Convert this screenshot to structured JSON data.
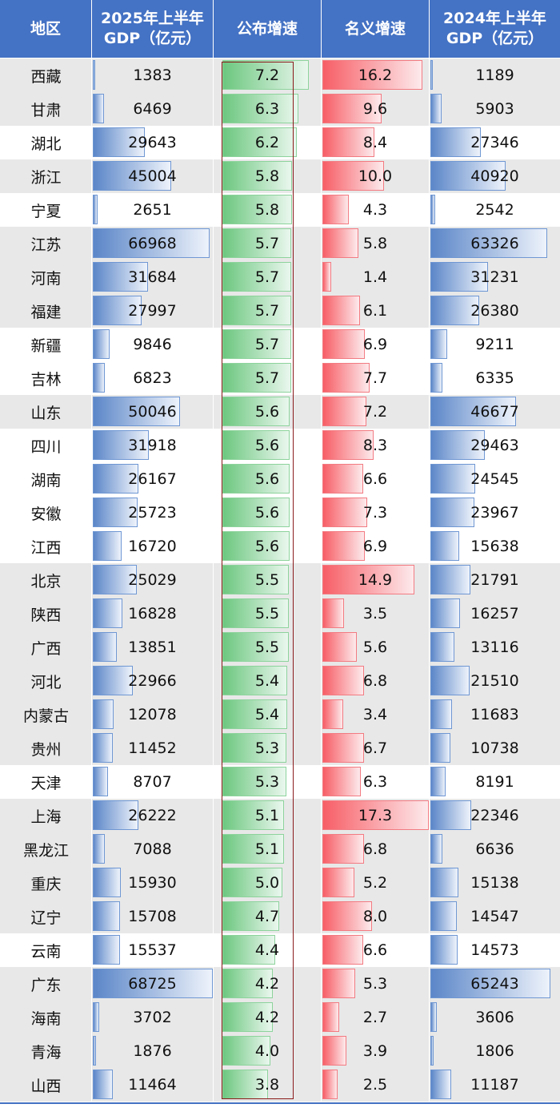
{
  "headers": {
    "region": "地区",
    "gdp_2025": [
      "2025年上半年",
      "GDP（亿元）"
    ],
    "official_growth": "公布增速",
    "nominal_growth": "名义增速",
    "gdp_2024": [
      "2024年上半年",
      "GDP（亿元）"
    ]
  },
  "colors": {
    "header_bg": "#4472c4",
    "gdp_bar": "#5b86c8",
    "official_bar": "#6cc77f",
    "nominal_bar": "#f75e66",
    "highlight_border": "#8b1a1a",
    "row_shade": "#e8e8e8"
  },
  "chart_data": {
    "type": "table",
    "columns": [
      "地区",
      "2025年上半年 GDP（亿元）",
      "公布增速",
      "名义增速",
      "2024年上半年 GDP（亿元）"
    ],
    "rows": [
      {
        "region": "西藏",
        "gdp_2025": "1383",
        "official": "7.2",
        "nominal": "16.2",
        "gdp_2024": "1189"
      },
      {
        "region": "甘肃",
        "gdp_2025": "6469",
        "official": "6.3",
        "nominal": "9.6",
        "gdp_2024": "5903"
      },
      {
        "region": "湖北",
        "gdp_2025": "29643",
        "official": "6.2",
        "nominal": "8.4",
        "gdp_2024": "27346"
      },
      {
        "region": "浙江",
        "gdp_2025": "45004",
        "official": "5.8",
        "nominal": "10.0",
        "gdp_2024": "40920"
      },
      {
        "region": "宁夏",
        "gdp_2025": "2651",
        "official": "5.8",
        "nominal": "4.3",
        "gdp_2024": "2542"
      },
      {
        "region": "江苏",
        "gdp_2025": "66968",
        "official": "5.7",
        "nominal": "5.8",
        "gdp_2024": "63326"
      },
      {
        "region": "河南",
        "gdp_2025": "31684",
        "official": "5.7",
        "nominal": "1.4",
        "gdp_2024": "31231"
      },
      {
        "region": "福建",
        "gdp_2025": "27997",
        "official": "5.7",
        "nominal": "6.1",
        "gdp_2024": "26380"
      },
      {
        "region": "新疆",
        "gdp_2025": "9846",
        "official": "5.7",
        "nominal": "6.9",
        "gdp_2024": "9211"
      },
      {
        "region": "吉林",
        "gdp_2025": "6823",
        "official": "5.7",
        "nominal": "7.7",
        "gdp_2024": "6335"
      },
      {
        "region": "山东",
        "gdp_2025": "50046",
        "official": "5.6",
        "nominal": "7.2",
        "gdp_2024": "46677"
      },
      {
        "region": "四川",
        "gdp_2025": "31918",
        "official": "5.6",
        "nominal": "8.3",
        "gdp_2024": "29463"
      },
      {
        "region": "湖南",
        "gdp_2025": "26167",
        "official": "5.6",
        "nominal": "6.6",
        "gdp_2024": "24545"
      },
      {
        "region": "安徽",
        "gdp_2025": "25723",
        "official": "5.6",
        "nominal": "7.3",
        "gdp_2024": "23967"
      },
      {
        "region": "江西",
        "gdp_2025": "16720",
        "official": "5.6",
        "nominal": "6.9",
        "gdp_2024": "15638"
      },
      {
        "region": "北京",
        "gdp_2025": "25029",
        "official": "5.5",
        "nominal": "14.9",
        "gdp_2024": "21791"
      },
      {
        "region": "陕西",
        "gdp_2025": "16828",
        "official": "5.5",
        "nominal": "3.5",
        "gdp_2024": "16257"
      },
      {
        "region": "广西",
        "gdp_2025": "13851",
        "official": "5.5",
        "nominal": "5.6",
        "gdp_2024": "13116"
      },
      {
        "region": "河北",
        "gdp_2025": "22966",
        "official": "5.4",
        "nominal": "6.8",
        "gdp_2024": "21510"
      },
      {
        "region": "内蒙古",
        "gdp_2025": "12078",
        "official": "5.4",
        "nominal": "3.4",
        "gdp_2024": "11683"
      },
      {
        "region": "贵州",
        "gdp_2025": "11452",
        "official": "5.3",
        "nominal": "6.7",
        "gdp_2024": "10738"
      },
      {
        "region": "天津",
        "gdp_2025": "8707",
        "official": "5.3",
        "nominal": "6.3",
        "gdp_2024": "8191"
      },
      {
        "region": "上海",
        "gdp_2025": "26222",
        "official": "5.1",
        "nominal": "17.3",
        "gdp_2024": "22346"
      },
      {
        "region": "黑龙江",
        "gdp_2025": "7088",
        "official": "5.1",
        "nominal": "6.8",
        "gdp_2024": "6636"
      },
      {
        "region": "重庆",
        "gdp_2025": "15930",
        "official": "5.0",
        "nominal": "5.2",
        "gdp_2024": "15138"
      },
      {
        "region": "辽宁",
        "gdp_2025": "15708",
        "official": "4.7",
        "nominal": "8.0",
        "gdp_2024": "14547"
      },
      {
        "region": "云南",
        "gdp_2025": "15537",
        "official": "4.4",
        "nominal": "6.6",
        "gdp_2024": "14573"
      },
      {
        "region": "广东",
        "gdp_2025": "68725",
        "official": "4.2",
        "nominal": "5.3",
        "gdp_2024": "65243"
      },
      {
        "region": "海南",
        "gdp_2025": "3702",
        "official": "4.2",
        "nominal": "2.7",
        "gdp_2024": "3606"
      },
      {
        "region": "青海",
        "gdp_2025": "1876",
        "official": "4.0",
        "nominal": "3.9",
        "gdp_2024": "1806"
      },
      {
        "region": "山西",
        "gdp_2025": "11464",
        "official": "3.8",
        "nominal": "2.5",
        "gdp_2024": "11187"
      }
    ]
  }
}
